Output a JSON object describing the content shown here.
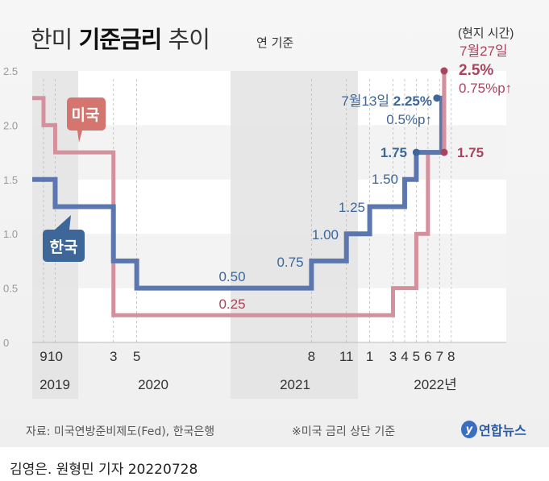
{
  "header": {
    "title_pre": "한미 ",
    "title_bold": "기준금리",
    "title_post": " 추이",
    "unit_note": "연 기준"
  },
  "footer": {
    "source": "자료: 미국연방준비제도(Fed), 한국은행",
    "note": "※미국 금리 상단 기준",
    "credit": "김영은. 원형민 기자  20220728",
    "logo_text": "연합뉴스"
  },
  "chart_data": {
    "type": "line",
    "step": true,
    "ylim": [
      0,
      2.5
    ],
    "y_ticks": [
      "0",
      "0.5",
      "1.0",
      "1.5",
      "2.0",
      "2.5"
    ],
    "x_month_ticks": [
      {
        "year": 2019,
        "month": 9,
        "label": "9"
      },
      {
        "year": 2019,
        "month": 10,
        "label": "10"
      },
      {
        "year": 2020,
        "month": 3,
        "label": "3"
      },
      {
        "year": 2020,
        "month": 5,
        "label": "5"
      },
      {
        "year": 2021,
        "month": 8,
        "label": "8"
      },
      {
        "year": 2021,
        "month": 11,
        "label": "11"
      },
      {
        "year": 2022,
        "month": 1,
        "label": "1"
      },
      {
        "year": 2022,
        "month": 3,
        "label": "3"
      },
      {
        "year": 2022,
        "month": 4,
        "label": "4"
      },
      {
        "year": 2022,
        "month": 5,
        "label": "5"
      },
      {
        "year": 2022,
        "month": 6,
        "label": "6"
      },
      {
        "year": 2022,
        "month": 7,
        "label": "7"
      },
      {
        "year": 2022,
        "month": 8,
        "label": "8"
      }
    ],
    "year_labels": [
      "2019",
      "2020",
      "2021",
      "2022년"
    ],
    "colors": {
      "korea": "#5b77ad",
      "korea_label": "#3d6699",
      "us": "#d4909d",
      "us_label": "#a8455e",
      "us_bubble": "#d4756f"
    },
    "series": [
      {
        "name": "미국",
        "start_value": 2.25,
        "changes": [
          {
            "year": 2019,
            "month": 9,
            "value": 2.0
          },
          {
            "year": 2019,
            "month": 10,
            "value": 1.75
          },
          {
            "year": 2020,
            "month": 3,
            "value": 0.25
          },
          {
            "year": 2022,
            "month": 3,
            "value": 0.5
          },
          {
            "year": 2022,
            "month": 5,
            "value": 1.0
          },
          {
            "year": 2022,
            "month": 6,
            "value": 1.75
          },
          {
            "year": 2022,
            "month": 7,
            "day": 27,
            "value": 2.5
          }
        ]
      },
      {
        "name": "한국",
        "start_value": 1.5,
        "changes": [
          {
            "year": 2019,
            "month": 10,
            "value": 1.25
          },
          {
            "year": 2020,
            "month": 3,
            "value": 0.75
          },
          {
            "year": 2020,
            "month": 5,
            "value": 0.5
          },
          {
            "year": 2021,
            "month": 8,
            "value": 0.75
          },
          {
            "year": 2021,
            "month": 11,
            "value": 1.0
          },
          {
            "year": 2022,
            "month": 1,
            "value": 1.25
          },
          {
            "year": 2022,
            "month": 4,
            "value": 1.5
          },
          {
            "year": 2022,
            "month": 5,
            "value": 1.75
          },
          {
            "year": 2022,
            "month": 7,
            "day": 13,
            "value": 2.25
          }
        ]
      }
    ],
    "data_labels": {
      "kr_050": "0.50",
      "us_025": "0.25",
      "kr_075": "0.75",
      "kr_100": "1.00",
      "kr_125": "1.25",
      "kr_150": "1.50",
      "kr_175": "1.75",
      "us_175": "1.75",
      "kr_date": "7월13일 ",
      "kr_last": "2.25%",
      "kr_delta": "0.5%p↑",
      "us_local": "(현지 시간)",
      "us_date": "7월27일",
      "us_last": "2.5%",
      "us_delta": "0.75%p↑"
    }
  }
}
